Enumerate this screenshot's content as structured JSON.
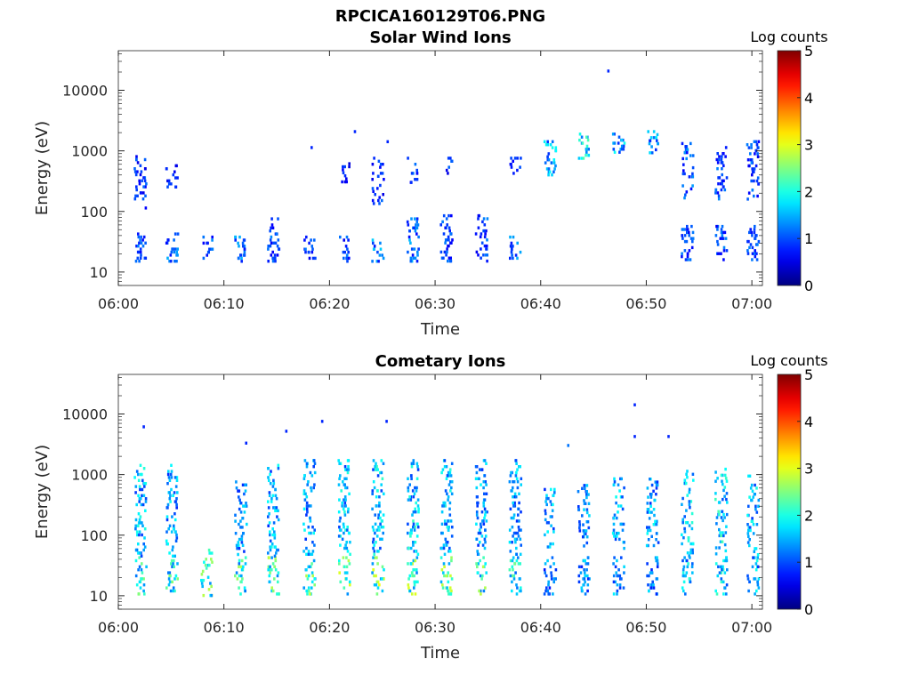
{
  "page": {
    "title": "RPCICA160129T06.PNG"
  },
  "colors": {
    "axis": "#262626",
    "background": "#ffffff",
    "colormap": "jet"
  },
  "chart_data": [
    {
      "type": "heatmap",
      "title": "Solar Wind Ions",
      "xlabel": "Time",
      "ylabel": "Energy (eV)",
      "yscale": "log",
      "xlim": [
        "06:00",
        "07:01"
      ],
      "ylim": [
        6,
        45000
      ],
      "x_ticks": [
        "06:00",
        "06:10",
        "06:20",
        "06:30",
        "06:40",
        "06:50",
        "07:00"
      ],
      "y_ticks": [
        "10",
        "100",
        "1000",
        "10000"
      ],
      "colorbar": {
        "label": "Log counts",
        "range": [
          0,
          5
        ],
        "ticks": [
          "0",
          "1",
          "2",
          "3",
          "4",
          "5"
        ]
      },
      "grid": false,
      "scan_times_min": [
        2.0,
        5.0,
        8.3,
        11.5,
        14.6,
        18.0,
        21.3,
        24.5,
        27.8,
        31.0,
        34.3,
        37.5,
        40.8,
        44.0,
        47.3,
        50.5,
        53.8,
        57.0,
        60.0
      ],
      "bursts": [
        {
          "t": 2.0,
          "e_lo": 15,
          "e_hi": 45,
          "level": 1.0
        },
        {
          "t": 2.0,
          "e_lo": 100,
          "e_hi": 850,
          "level": 0.9
        },
        {
          "t": 5.0,
          "e_lo": 15,
          "e_hi": 45,
          "level": 1.2
        },
        {
          "t": 5.0,
          "e_lo": 250,
          "e_hi": 600,
          "level": 0.8
        },
        {
          "t": 8.3,
          "e_lo": 15,
          "e_hi": 40,
          "level": 1.1
        },
        {
          "t": 11.5,
          "e_lo": 15,
          "e_hi": 40,
          "level": 1.2
        },
        {
          "t": 14.6,
          "e_lo": 15,
          "e_hi": 80,
          "level": 1.0
        },
        {
          "t": 18.0,
          "e_lo": 15,
          "e_hi": 40,
          "level": 1.0
        },
        {
          "t": 21.3,
          "e_lo": 15,
          "e_hi": 40,
          "level": 1.0
        },
        {
          "t": 21.3,
          "e_lo": 300,
          "e_hi": 650,
          "level": 0.8
        },
        {
          "t": 24.5,
          "e_lo": 15,
          "e_hi": 40,
          "level": 1.3
        },
        {
          "t": 24.5,
          "e_lo": 100,
          "e_hi": 800,
          "level": 0.9
        },
        {
          "t": 27.8,
          "e_lo": 15,
          "e_hi": 80,
          "level": 1.2
        },
        {
          "t": 27.8,
          "e_lo": 300,
          "e_hi": 800,
          "level": 1.0
        },
        {
          "t": 31.0,
          "e_lo": 15,
          "e_hi": 90,
          "level": 1.0
        },
        {
          "t": 31.0,
          "e_lo": 400,
          "e_hi": 800,
          "level": 0.9
        },
        {
          "t": 34.3,
          "e_lo": 15,
          "e_hi": 90,
          "level": 1.0
        },
        {
          "t": 37.5,
          "e_lo": 15,
          "e_hi": 40,
          "level": 1.3
        },
        {
          "t": 37.5,
          "e_lo": 400,
          "e_hi": 800,
          "level": 0.8
        },
        {
          "t": 40.8,
          "e_lo": 400,
          "e_hi": 1500,
          "level": 1.6
        },
        {
          "t": 44.0,
          "e_lo": 700,
          "e_hi": 2000,
          "level": 1.8
        },
        {
          "t": 47.3,
          "e_lo": 900,
          "e_hi": 2000,
          "level": 1.5
        },
        {
          "t": 50.5,
          "e_lo": 900,
          "e_hi": 2200,
          "level": 1.5
        },
        {
          "t": 53.8,
          "e_lo": 15,
          "e_hi": 60,
          "level": 1.0
        },
        {
          "t": 53.8,
          "e_lo": 150,
          "e_hi": 1400,
          "level": 1.1
        },
        {
          "t": 57.0,
          "e_lo": 15,
          "e_hi": 60,
          "level": 1.0
        },
        {
          "t": 57.0,
          "e_lo": 150,
          "e_hi": 1200,
          "level": 1.0
        },
        {
          "t": 60.0,
          "e_lo": 15,
          "e_hi": 60,
          "level": 1.0
        },
        {
          "t": 60.0,
          "e_lo": 150,
          "e_hi": 1500,
          "level": 1.0
        }
      ],
      "isolated_points": [
        {
          "t": 46.3,
          "e": 22000,
          "level": 0.8
        },
        {
          "t": 22.3,
          "e": 2200,
          "level": 0.8
        },
        {
          "t": 18.2,
          "e": 1200,
          "level": 0.8
        },
        {
          "t": 25.4,
          "e": 1500,
          "level": 0.8
        }
      ]
    },
    {
      "type": "heatmap",
      "title": "Cometary Ions",
      "xlabel": "Time",
      "ylabel": "Energy (eV)",
      "yscale": "log",
      "xlim": [
        "06:00",
        "07:01"
      ],
      "ylim": [
        6,
        45000
      ],
      "x_ticks": [
        "06:00",
        "06:10",
        "06:20",
        "06:30",
        "06:40",
        "06:50",
        "07:00"
      ],
      "y_ticks": [
        "10",
        "100",
        "1000",
        "10000"
      ],
      "colorbar": {
        "label": "Log counts",
        "range": [
          0,
          5
        ],
        "ticks": [
          "0",
          "1",
          "2",
          "3",
          "4",
          "5"
        ]
      },
      "grid": false,
      "scan_times_min": [
        2.0,
        5.0,
        8.3,
        11.5,
        14.6,
        18.0,
        21.3,
        24.5,
        27.8,
        31.0,
        34.3,
        37.5,
        40.8,
        44.0,
        47.3,
        50.5,
        53.8,
        57.0,
        60.0
      ],
      "bursts": [
        {
          "t": 2.0,
          "e_lo": 10,
          "e_hi": 45,
          "level": 2.0
        },
        {
          "t": 2.0,
          "e_lo": 45,
          "e_hi": 1500,
          "level": 1.6
        },
        {
          "t": 5.0,
          "e_lo": 10,
          "e_hi": 45,
          "level": 2.0
        },
        {
          "t": 5.0,
          "e_lo": 45,
          "e_hi": 1500,
          "level": 1.5
        },
        {
          "t": 8.3,
          "e_lo": 10,
          "e_hi": 60,
          "level": 2.4
        },
        {
          "t": 11.5,
          "e_lo": 10,
          "e_hi": 45,
          "level": 2.1
        },
        {
          "t": 11.5,
          "e_lo": 45,
          "e_hi": 800,
          "level": 1.4
        },
        {
          "t": 14.6,
          "e_lo": 10,
          "e_hi": 45,
          "level": 2.2
        },
        {
          "t": 14.6,
          "e_lo": 45,
          "e_hi": 1500,
          "level": 1.5
        },
        {
          "t": 18.0,
          "e_lo": 10,
          "e_hi": 45,
          "level": 2.2
        },
        {
          "t": 18.0,
          "e_lo": 45,
          "e_hi": 1800,
          "level": 1.5
        },
        {
          "t": 21.3,
          "e_lo": 10,
          "e_hi": 45,
          "level": 2.3
        },
        {
          "t": 21.3,
          "e_lo": 45,
          "e_hi": 1800,
          "level": 1.6
        },
        {
          "t": 24.5,
          "e_lo": 10,
          "e_hi": 45,
          "level": 2.4
        },
        {
          "t": 24.5,
          "e_lo": 45,
          "e_hi": 1800,
          "level": 1.7
        },
        {
          "t": 27.8,
          "e_lo": 10,
          "e_hi": 45,
          "level": 2.3
        },
        {
          "t": 27.8,
          "e_lo": 45,
          "e_hi": 1800,
          "level": 1.7
        },
        {
          "t": 31.0,
          "e_lo": 10,
          "e_hi": 45,
          "level": 2.3
        },
        {
          "t": 31.0,
          "e_lo": 45,
          "e_hi": 1800,
          "level": 1.6
        },
        {
          "t": 34.3,
          "e_lo": 10,
          "e_hi": 45,
          "level": 2.2
        },
        {
          "t": 34.3,
          "e_lo": 45,
          "e_hi": 1800,
          "level": 1.5
        },
        {
          "t": 37.5,
          "e_lo": 10,
          "e_hi": 45,
          "level": 2.0
        },
        {
          "t": 37.5,
          "e_lo": 45,
          "e_hi": 1800,
          "level": 1.5
        },
        {
          "t": 40.8,
          "e_lo": 10,
          "e_hi": 45,
          "level": 1.3
        },
        {
          "t": 40.8,
          "e_lo": 60,
          "e_hi": 600,
          "level": 1.5
        },
        {
          "t": 44.0,
          "e_lo": 10,
          "e_hi": 45,
          "level": 1.4
        },
        {
          "t": 44.0,
          "e_lo": 60,
          "e_hi": 700,
          "level": 1.4
        },
        {
          "t": 47.3,
          "e_lo": 10,
          "e_hi": 45,
          "level": 1.4
        },
        {
          "t": 47.3,
          "e_lo": 60,
          "e_hi": 900,
          "level": 1.5
        },
        {
          "t": 50.5,
          "e_lo": 10,
          "e_hi": 45,
          "level": 1.4
        },
        {
          "t": 50.5,
          "e_lo": 60,
          "e_hi": 1000,
          "level": 1.5
        },
        {
          "t": 53.8,
          "e_lo": 10,
          "e_hi": 45,
          "level": 1.6
        },
        {
          "t": 53.8,
          "e_lo": 45,
          "e_hi": 1200,
          "level": 1.6
        },
        {
          "t": 57.0,
          "e_lo": 10,
          "e_hi": 45,
          "level": 1.7
        },
        {
          "t": 57.0,
          "e_lo": 45,
          "e_hi": 1300,
          "level": 1.8
        },
        {
          "t": 60.0,
          "e_lo": 10,
          "e_hi": 45,
          "level": 1.6
        },
        {
          "t": 60.0,
          "e_lo": 45,
          "e_hi": 1000,
          "level": 1.6
        }
      ],
      "isolated_points": [
        {
          "t": 48.8,
          "e": 15000,
          "level": 0.8
        },
        {
          "t": 48.8,
          "e": 4500,
          "level": 0.8
        },
        {
          "t": 52.0,
          "e": 4500,
          "level": 0.8
        },
        {
          "t": 25.3,
          "e": 8000,
          "level": 0.8
        },
        {
          "t": 19.2,
          "e": 8000,
          "level": 0.8
        },
        {
          "t": 2.3,
          "e": 6500,
          "level": 0.8
        },
        {
          "t": 12.0,
          "e": 3500,
          "level": 0.8
        },
        {
          "t": 15.8,
          "e": 5500,
          "level": 0.8
        },
        {
          "t": 42.5,
          "e": 3200,
          "level": 1.2
        }
      ]
    }
  ]
}
